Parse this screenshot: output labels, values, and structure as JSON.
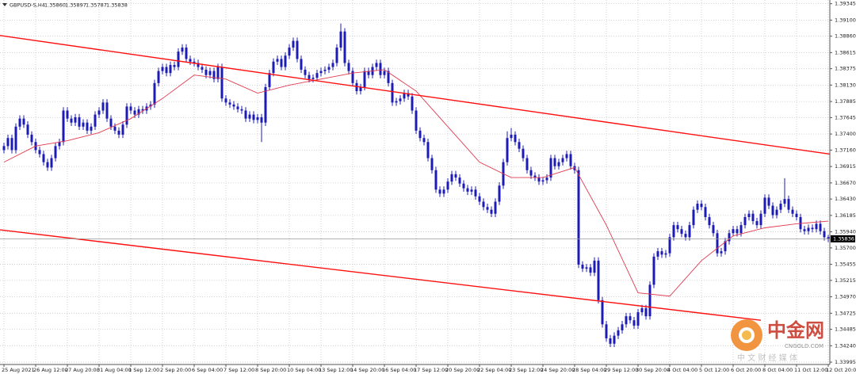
{
  "chart_data": {
    "type": "candlestick",
    "title": "GBPUSD-S,H4",
    "header_values": [
      "1.35860",
      "1.35897",
      "1.35787",
      "1.35838"
    ],
    "color": "#1c1cb4",
    "grid": true,
    "ylim": [
      1.3396,
      1.394
    ],
    "yticks": [
      {
        "value": 1.39345,
        "label": "1.39345"
      },
      {
        "value": 1.391,
        "label": "1.39100"
      },
      {
        "value": 1.3886,
        "label": "1.38860"
      },
      {
        "value": 1.38615,
        "label": "1.38615"
      },
      {
        "value": 1.38375,
        "label": "1.38375"
      },
      {
        "value": 1.3813,
        "label": "1.38130"
      },
      {
        "value": 1.37885,
        "label": "1.37885"
      },
      {
        "value": 1.37645,
        "label": "1.37645"
      },
      {
        "value": 1.374,
        "label": "1.37400"
      },
      {
        "value": 1.3716,
        "label": "1.37160"
      },
      {
        "value": 1.36915,
        "label": "1.36915"
      },
      {
        "value": 1.3667,
        "label": "1.36670"
      },
      {
        "value": 1.3643,
        "label": "1.36430"
      },
      {
        "value": 1.36185,
        "label": "1.36185"
      },
      {
        "value": 1.3594,
        "label": "1.35940"
      },
      {
        "value": 1.357,
        "label": "1.35700"
      },
      {
        "value": 1.35455,
        "label": "1.35455"
      },
      {
        "value": 1.35215,
        "label": "1.35215"
      },
      {
        "value": 1.3497,
        "label": "1.34970"
      },
      {
        "value": 1.34725,
        "label": "1.34725"
      },
      {
        "value": 1.34485,
        "label": "1.34485"
      },
      {
        "value": 1.3424,
        "label": "1.34240"
      },
      {
        "value": 1.33995,
        "label": "1.33995"
      }
    ],
    "categories": [
      "25 Aug 2021",
      null,
      null,
      null,
      null,
      null,
      null,
      null,
      "26 Aug 12:00",
      null,
      null,
      null,
      null,
      null,
      null,
      null,
      "27 Aug 20:00",
      null,
      null,
      null,
      null,
      null,
      null,
      null,
      "31 Aug 04:00",
      null,
      null,
      null,
      null,
      null,
      null,
      null,
      "1 Sep 12:00",
      null,
      null,
      null,
      null,
      null,
      null,
      null,
      "2 Sep 20:00",
      null,
      null,
      null,
      null,
      null,
      null,
      null,
      "6 Sep 04:00",
      null,
      null,
      null,
      null,
      null,
      null,
      null,
      "7 Sep 12:00",
      null,
      null,
      null,
      null,
      null,
      null,
      null,
      "8 Sep 20:00",
      null,
      null,
      null,
      null,
      null,
      null,
      null,
      "10 Sep 04:00",
      null,
      null,
      null,
      null,
      null,
      null,
      null,
      "13 Sep 12:00",
      null,
      null,
      null,
      null,
      null,
      null,
      null,
      "14 Sep 20:00",
      null,
      null,
      null,
      null,
      null,
      null,
      null,
      "16 Sep 04:00",
      null,
      null,
      null,
      null,
      null,
      null,
      null,
      "17 Sep 12:00",
      null,
      null,
      null,
      null,
      null,
      null,
      null,
      "20 Sep 20:00",
      null,
      null,
      null,
      null,
      null,
      null,
      null,
      "22 Sep 04:00",
      null,
      null,
      null,
      null,
      null,
      null,
      null,
      "23 Sep 12:00",
      null,
      null,
      null,
      null,
      null,
      null,
      null,
      "24 Sep 20:00",
      null,
      null,
      null,
      null,
      null,
      null,
      null,
      "28 Sep 04:00",
      null,
      null,
      null,
      null,
      null,
      null,
      null,
      "29 Sep 12:00",
      null,
      null,
      null,
      null,
      null,
      null,
      null,
      "30 Sep 20:00",
      null,
      null,
      null,
      null,
      null,
      null,
      null,
      "4 Oct 04:00",
      null,
      null,
      null,
      null,
      null,
      null,
      null,
      "5 Oct 12:00",
      null,
      null,
      null,
      null,
      null,
      null,
      null,
      "6 Oct 20:00",
      null,
      null,
      null,
      null,
      null,
      null,
      null,
      "8 Oct 04:00",
      null,
      null,
      null,
      null,
      null,
      null,
      null,
      "11 Oct 12:00",
      null,
      null,
      null,
      null,
      null,
      null,
      null,
      "12 Oct 20:00"
    ],
    "open": [
      1.3716,
      1.3722,
      1.3734,
      1.3716,
      1.3751,
      1.3763,
      1.3754,
      1.3739,
      1.3728,
      1.3716,
      1.371,
      1.3698,
      1.369,
      1.3704,
      1.3722,
      1.3728,
      1.3775,
      1.3763,
      1.3757,
      1.3765,
      1.3751,
      1.3757,
      1.3745,
      1.3751,
      1.3769,
      1.3775,
      1.3787,
      1.3763,
      1.3751,
      1.3745,
      1.3739,
      1.3754,
      1.3781,
      1.3775,
      1.3769,
      1.3777,
      1.3775,
      1.3781,
      1.3784,
      1.3816,
      1.3834,
      1.384,
      1.3831,
      1.3843,
      1.384,
      1.3863,
      1.3869,
      1.3852,
      1.3848,
      1.3846,
      1.384,
      1.3836,
      1.3828,
      1.3834,
      1.3822,
      1.384,
      1.3793,
      1.3787,
      1.3784,
      1.3781,
      1.3777,
      1.3775,
      1.3763,
      1.3769,
      1.3761,
      1.3765,
      1.3757,
      1.381,
      1.3831,
      1.3848,
      1.3852,
      1.384,
      1.3857,
      1.3869,
      1.3879,
      1.3852,
      1.3836,
      1.3828,
      1.3822,
      1.3824,
      1.3831,
      1.3834,
      1.3836,
      1.384,
      1.3846,
      1.3869,
      1.3893,
      1.3846,
      1.3834,
      1.3816,
      1.3804,
      1.381,
      1.3834,
      1.3828,
      1.384,
      1.3846,
      1.3828,
      1.3834,
      1.3816,
      1.3787,
      1.3789,
      1.3793,
      1.3801,
      1.3796,
      1.3775,
      1.3745,
      1.3734,
      1.3728,
      1.3704,
      1.3686,
      1.3657,
      1.3651,
      1.3657,
      1.3669,
      1.368,
      1.3675,
      1.3666,
      1.3659,
      1.3654,
      1.3657,
      1.3647,
      1.3639,
      1.3631,
      1.3627,
      1.3621,
      1.3639,
      1.3663,
      1.3698,
      1.3734,
      1.3739,
      1.3728,
      1.3718,
      1.3704,
      1.3686,
      1.3678,
      1.3675,
      1.3669,
      1.3671,
      1.3675,
      1.3704,
      1.3692,
      1.3698,
      1.3704,
      1.371,
      1.3692,
      1.3686,
      1.3545,
      1.3539,
      1.3541,
      1.3533,
      1.3551,
      1.3492,
      1.3456,
      1.3435,
      1.3427,
      1.3439,
      1.3447,
      1.3456,
      1.3468,
      1.3462,
      1.3454,
      1.3474,
      1.348,
      1.3468,
      1.3515,
      1.3557,
      1.3565,
      1.356,
      1.3562,
      1.3586,
      1.3604,
      1.3598,
      1.3591,
      1.3586,
      1.3604,
      1.3627,
      1.3636,
      1.3631,
      1.3616,
      1.3604,
      1.3592,
      1.3562,
      1.3565,
      1.358,
      1.3592,
      1.3598,
      1.3592,
      1.3604,
      1.3616,
      1.3621,
      1.361,
      1.3604,
      1.3621,
      1.3645,
      1.3633,
      1.3619,
      1.3627,
      1.3636,
      1.3643,
      1.3627,
      1.3621,
      1.3616,
      1.3598,
      1.3595,
      1.36,
      1.3598,
      1.3606,
      1.3595,
      1.3586
    ],
    "high": [
      1.3727,
      1.3739,
      1.3739,
      1.3756,
      1.3768,
      1.3768,
      1.3759,
      1.3744,
      1.3733,
      1.3721,
      1.3715,
      1.3703,
      1.3709,
      1.3727,
      1.3733,
      1.378,
      1.378,
      1.3768,
      1.377,
      1.377,
      1.3762,
      1.3762,
      1.3756,
      1.3774,
      1.378,
      1.3792,
      1.3792,
      1.3768,
      1.3756,
      1.375,
      1.3759,
      1.3786,
      1.3786,
      1.378,
      1.3782,
      1.3782,
      1.3786,
      1.3789,
      1.3821,
      1.3839,
      1.3845,
      1.3845,
      1.3848,
      1.3848,
      1.3868,
      1.3874,
      1.3874,
      1.3857,
      1.3853,
      1.3851,
      1.3845,
      1.3841,
      1.3839,
      1.3839,
      1.3845,
      1.3845,
      1.3798,
      1.3792,
      1.3789,
      1.3786,
      1.3782,
      1.378,
      1.3774,
      1.3774,
      1.377,
      1.377,
      1.3815,
      1.3836,
      1.3853,
      1.3857,
      1.3857,
      1.3862,
      1.3874,
      1.3884,
      1.3884,
      1.3857,
      1.3841,
      1.3833,
      1.3829,
      1.3836,
      1.3839,
      1.3841,
      1.3845,
      1.3851,
      1.3874,
      1.3905,
      1.3898,
      1.3851,
      1.3839,
      1.3821,
      1.3815,
      1.3839,
      1.3839,
      1.3845,
      1.3851,
      1.3851,
      1.3839,
      1.3839,
      1.3821,
      1.3794,
      1.3798,
      1.3806,
      1.3806,
      1.3801,
      1.378,
      1.375,
      1.3739,
      1.3733,
      1.3709,
      1.3691,
      1.3662,
      1.3662,
      1.3674,
      1.3685,
      1.3685,
      1.368,
      1.3671,
      1.3664,
      1.3662,
      1.3662,
      1.3652,
      1.3644,
      1.3636,
      1.3632,
      1.3644,
      1.3668,
      1.3703,
      1.3744,
      1.3749,
      1.3744,
      1.3733,
      1.3723,
      1.3709,
      1.3691,
      1.3683,
      1.368,
      1.3676,
      1.368,
      1.3709,
      1.3709,
      1.3703,
      1.3709,
      1.3715,
      1.3715,
      1.3697,
      1.3691,
      1.355,
      1.3546,
      1.3546,
      1.3556,
      1.3556,
      1.3497,
      1.3461,
      1.344,
      1.3444,
      1.3452,
      1.3461,
      1.3473,
      1.3473,
      1.3467,
      1.3479,
      1.3485,
      1.3485,
      1.352,
      1.3562,
      1.357,
      1.357,
      1.3567,
      1.3591,
      1.3609,
      1.3609,
      1.3603,
      1.3596,
      1.3609,
      1.3632,
      1.3641,
      1.3641,
      1.3636,
      1.3621,
      1.3609,
      1.3597,
      1.357,
      1.3585,
      1.3597,
      1.3603,
      1.3603,
      1.3609,
      1.3621,
      1.3626,
      1.3626,
      1.3615,
      1.3626,
      1.365,
      1.365,
      1.3638,
      1.3632,
      1.3641,
      1.3674,
      1.3648,
      1.3632,
      1.3626,
      1.3621,
      1.3603,
      1.3605,
      1.3605,
      1.3611,
      1.3611,
      1.36,
      1.35897
    ],
    "low": [
      1.3711,
      1.3717,
      1.3711,
      1.3711,
      1.3746,
      1.3749,
      1.3734,
      1.3723,
      1.3711,
      1.3705,
      1.3693,
      1.3685,
      1.3685,
      1.3699,
      1.3717,
      1.3723,
      1.3758,
      1.3752,
      1.3752,
      1.3746,
      1.3746,
      1.374,
      1.374,
      1.3746,
      1.3764,
      1.377,
      1.3758,
      1.3746,
      1.374,
      1.3734,
      1.3734,
      1.3749,
      1.377,
      1.3764,
      1.3764,
      1.377,
      1.377,
      1.3776,
      1.3779,
      1.3811,
      1.3829,
      1.3826,
      1.3826,
      1.3835,
      1.3835,
      1.3858,
      1.3847,
      1.3843,
      1.3841,
      1.3835,
      1.3831,
      1.3823,
      1.3823,
      1.3817,
      1.3817,
      1.3788,
      1.3782,
      1.3779,
      1.3776,
      1.3772,
      1.377,
      1.3758,
      1.3758,
      1.3756,
      1.3756,
      1.3728,
      1.3752,
      1.3805,
      1.3826,
      1.3843,
      1.3835,
      1.3835,
      1.3852,
      1.3864,
      1.3847,
      1.3831,
      1.3823,
      1.3817,
      1.3817,
      1.3819,
      1.3826,
      1.3829,
      1.3831,
      1.3835,
      1.3841,
      1.3864,
      1.3841,
      1.3829,
      1.3811,
      1.3799,
      1.3799,
      1.3805,
      1.3823,
      1.3823,
      1.3835,
      1.3823,
      1.3823,
      1.3811,
      1.3782,
      1.3782,
      1.3784,
      1.3788,
      1.3791,
      1.377,
      1.374,
      1.3729,
      1.3723,
      1.3699,
      1.3681,
      1.3652,
      1.3646,
      1.3646,
      1.3652,
      1.3664,
      1.367,
      1.3661,
      1.3654,
      1.3649,
      1.3649,
      1.3642,
      1.3634,
      1.3626,
      1.3622,
      1.3616,
      1.3616,
      1.3634,
      1.3658,
      1.3693,
      1.3729,
      1.3723,
      1.3713,
      1.3699,
      1.3681,
      1.3673,
      1.367,
      1.3664,
      1.3664,
      1.3666,
      1.367,
      1.3687,
      1.3687,
      1.3693,
      1.3699,
      1.3687,
      1.3681,
      1.354,
      1.3534,
      1.3534,
      1.3528,
      1.3528,
      1.3487,
      1.3451,
      1.343,
      1.3422,
      1.3422,
      1.3434,
      1.3442,
      1.3451,
      1.3457,
      1.3449,
      1.3449,
      1.3469,
      1.3463,
      1.3463,
      1.351,
      1.3552,
      1.3555,
      1.3555,
      1.3557,
      1.3581,
      1.3593,
      1.3586,
      1.3581,
      1.3581,
      1.3599,
      1.3622,
      1.3626,
      1.3611,
      1.3599,
      1.3587,
      1.3557,
      1.3557,
      1.356,
      1.3575,
      1.3587,
      1.3587,
      1.3587,
      1.3599,
      1.3611,
      1.3605,
      1.3599,
      1.3599,
      1.3616,
      1.3628,
      1.3614,
      1.3614,
      1.3622,
      1.3631,
      1.3622,
      1.3616,
      1.3611,
      1.3593,
      1.359,
      1.359,
      1.3593,
      1.3593,
      1.359,
      1.3581,
      1.35787
    ],
    "close": [
      1.3722,
      1.3734,
      1.3716,
      1.3751,
      1.3763,
      1.3754,
      1.3739,
      1.3728,
      1.3716,
      1.371,
      1.3698,
      1.369,
      1.3704,
      1.3722,
      1.3728,
      1.3775,
      1.3763,
      1.3757,
      1.3765,
      1.3751,
      1.3757,
      1.3745,
      1.3751,
      1.3769,
      1.3775,
      1.3787,
      1.3763,
      1.3751,
      1.3745,
      1.3739,
      1.3754,
      1.3781,
      1.3775,
      1.3769,
      1.3777,
      1.3775,
      1.3781,
      1.3784,
      1.3816,
      1.3834,
      1.384,
      1.3831,
      1.3843,
      1.384,
      1.3863,
      1.3869,
      1.3852,
      1.3848,
      1.3846,
      1.384,
      1.3836,
      1.3828,
      1.3834,
      1.3822,
      1.384,
      1.3793,
      1.3787,
      1.3784,
      1.3781,
      1.3777,
      1.3775,
      1.3763,
      1.3769,
      1.3761,
      1.3765,
      1.3757,
      1.381,
      1.3831,
      1.3848,
      1.3852,
      1.384,
      1.3857,
      1.3869,
      1.3879,
      1.3852,
      1.3836,
      1.3828,
      1.3822,
      1.3824,
      1.3831,
      1.3834,
      1.3836,
      1.384,
      1.3846,
      1.3869,
      1.3893,
      1.3846,
      1.3834,
      1.3816,
      1.3804,
      1.381,
      1.3834,
      1.3828,
      1.384,
      1.3846,
      1.3828,
      1.3834,
      1.3816,
      1.3787,
      1.3789,
      1.3793,
      1.3801,
      1.3796,
      1.3775,
      1.3745,
      1.3734,
      1.3728,
      1.3704,
      1.3686,
      1.3657,
      1.3651,
      1.3657,
      1.3669,
      1.368,
      1.3675,
      1.3666,
      1.3659,
      1.3654,
      1.3657,
      1.3647,
      1.3639,
      1.3631,
      1.3627,
      1.3621,
      1.3639,
      1.3663,
      1.3698,
      1.3734,
      1.3739,
      1.3728,
      1.3718,
      1.3704,
      1.3686,
      1.3678,
      1.3675,
      1.3669,
      1.3671,
      1.3675,
      1.3704,
      1.3692,
      1.3698,
      1.3704,
      1.371,
      1.3692,
      1.3686,
      1.3545,
      1.3539,
      1.3541,
      1.3533,
      1.3551,
      1.3492,
      1.3456,
      1.3435,
      1.3427,
      1.3439,
      1.3447,
      1.3456,
      1.3468,
      1.3462,
      1.3454,
      1.3474,
      1.348,
      1.3468,
      1.3515,
      1.3557,
      1.3565,
      1.356,
      1.3562,
      1.3586,
      1.3604,
      1.3598,
      1.3591,
      1.3586,
      1.3604,
      1.3627,
      1.3636,
      1.3631,
      1.3616,
      1.3604,
      1.3592,
      1.3562,
      1.3565,
      1.358,
      1.3592,
      1.3598,
      1.3592,
      1.3604,
      1.3616,
      1.3621,
      1.361,
      1.3604,
      1.3621,
      1.3645,
      1.3633,
      1.3619,
      1.3627,
      1.3636,
      1.3643,
      1.3627,
      1.3621,
      1.3616,
      1.3598,
      1.3595,
      1.36,
      1.3598,
      1.3606,
      1.3595,
      1.3586,
      1.35838
    ],
    "moving_average": {
      "color": "#e23a4e",
      "x": [
        0,
        8,
        16,
        24,
        32,
        40,
        48,
        56,
        64,
        72,
        80,
        88,
        96,
        104,
        112,
        120,
        128,
        136,
        144,
        152,
        160,
        168,
        176,
        184,
        192,
        200,
        208
      ],
      "values": [
        1.3698,
        1.3722,
        1.373,
        1.3742,
        1.3763,
        1.3793,
        1.3828,
        1.3822,
        1.3801,
        1.3813,
        1.3822,
        1.3831,
        1.3836,
        1.3804,
        1.3751,
        1.3698,
        1.3675,
        1.3675,
        1.369,
        1.3604,
        1.3503,
        1.3498,
        1.3551,
        1.3588,
        1.36,
        1.3606,
        1.361
      ]
    },
    "trendlines": [
      {
        "color": "#ff1010",
        "x": [
          -1,
          208.4
        ],
        "values": [
          1.3887,
          1.371
        ]
      },
      {
        "color": "#ff1010",
        "x": [
          -1,
          191
        ],
        "values": [
          1.3597,
          1.3462
        ]
      }
    ],
    "last_price": 1.35836,
    "watermark": {
      "name": "中金网",
      "site": "CNGOLD.COM",
      "slogan": "中 文 财 经 媒 体"
    }
  }
}
